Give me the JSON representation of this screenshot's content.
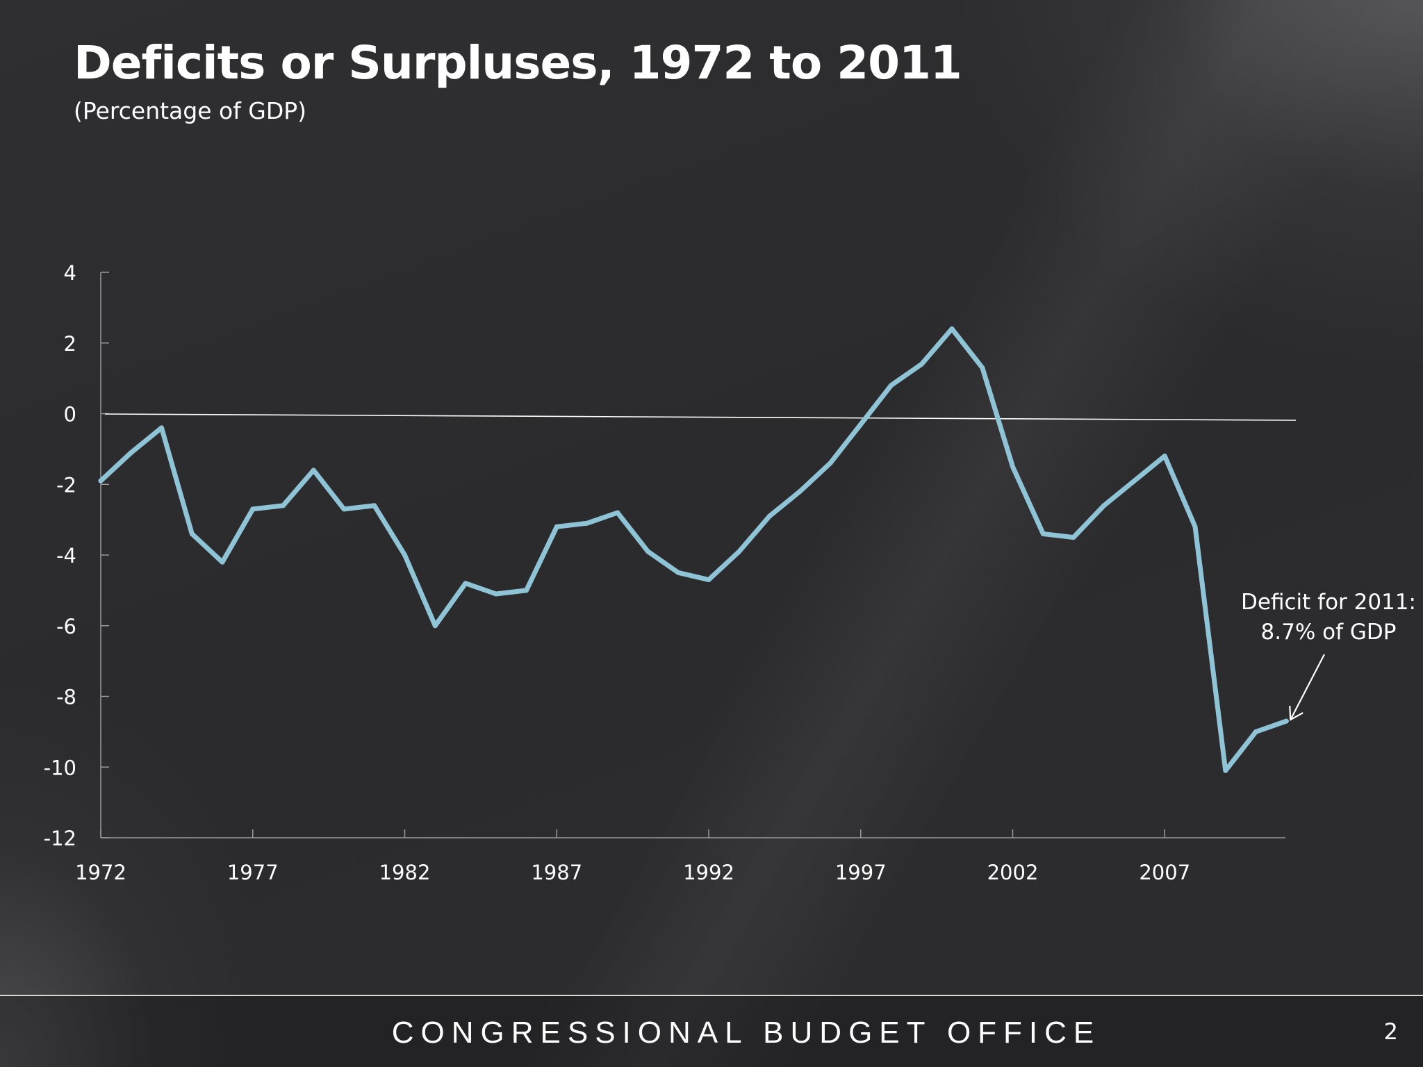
{
  "slide": {
    "title": "Deficits or Surpluses, 1972 to 2011",
    "subtitle": "(Percentage of GDP)",
    "footer": "CONGRESSIONAL BUDGET OFFICE",
    "page_number": "2"
  },
  "colors": {
    "line": "#8fc3d6",
    "axis": "#ffffff",
    "background": "#2e2e30"
  },
  "chart_data": {
    "type": "line",
    "title": "Deficits or Surpluses, 1972 to 2011",
    "subtitle": "(Percentage of GDP)",
    "xlabel": "",
    "ylabel": "",
    "xlim": [
      1972,
      2011
    ],
    "ylim": [
      -12,
      4
    ],
    "yticks": [
      4,
      2,
      0,
      -2,
      -4,
      -6,
      -8,
      -10,
      -12
    ],
    "xticks": [
      1972,
      1977,
      1982,
      1987,
      1992,
      1997,
      2002,
      2007
    ],
    "grid": false,
    "legend": "none",
    "series": [
      {
        "x": [
          1972,
          1973,
          1974,
          1975,
          1976,
          1977,
          1978,
          1979,
          1980,
          1981,
          1982,
          1983,
          1984,
          1985,
          1986,
          1987,
          1988,
          1989,
          1990,
          1991,
          1992,
          1993,
          1994,
          1995,
          1996,
          1997,
          1998,
          1999,
          2000,
          2001,
          2002,
          2003,
          2004,
          2005,
          2006,
          2007,
          2008,
          2009,
          2010,
          2011
        ],
        "values": [
          -1.9,
          -1.1,
          -0.4,
          -3.4,
          -4.2,
          -2.7,
          -2.6,
          -1.6,
          -2.7,
          -2.6,
          -4.0,
          -6.0,
          -4.8,
          -5.1,
          -5.0,
          -3.2,
          -3.1,
          -2.8,
          -3.9,
          -4.5,
          -4.7,
          -3.9,
          -2.9,
          -2.2,
          -1.4,
          -0.3,
          0.8,
          1.4,
          2.4,
          1.3,
          -1.5,
          -3.4,
          -3.5,
          -2.6,
          -1.9,
          -1.2,
          -3.2,
          -10.1,
          -9.0,
          -8.7
        ]
      }
    ],
    "annotation": {
      "line1": "Deficit for 2011:",
      "line2": "8.7% of GDP",
      "year": 2011,
      "value": -8.7
    }
  }
}
